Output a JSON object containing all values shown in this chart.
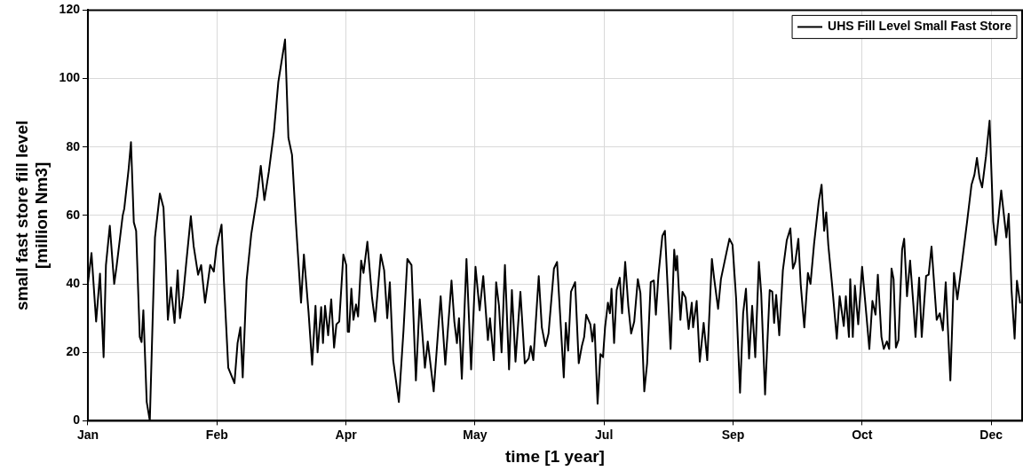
{
  "chart_data": {
    "type": "line",
    "xlabel": "time [1 year]",
    "ylabel": "small fast store fill level\n[million Nm3]",
    "xlim": [
      "--01-01",
      "--12-29"
    ],
    "ylim": [
      0,
      120
    ],
    "xticks": [
      {
        "value": "--01-01",
        "label": "Jan"
      },
      {
        "value": "--02-20",
        "label": "Feb"
      },
      {
        "value": "--04-11",
        "label": "Apr"
      },
      {
        "value": "--05-31",
        "label": "May"
      },
      {
        "value": "--07-20",
        "label": "Jul"
      },
      {
        "value": "--09-08",
        "label": "Sep"
      },
      {
        "value": "--10-28",
        "label": "Oct"
      },
      {
        "value": "--12-17",
        "label": "Dec"
      }
    ],
    "yticks": [
      0,
      20,
      40,
      60,
      80,
      100,
      120
    ],
    "grid": true,
    "legend": "top right",
    "marker": "none",
    "line_style": "solid",
    "series": [
      {
        "name": "UHS Fill Level Small Fast Store",
        "color": "#000000",
        "x": [
          "--01-01",
          "--01-02T09:36",
          "--01-04T04:48",
          "--01-05T16:48",
          "--01-07T02:24",
          "--01-08",
          "--01-09T12:00",
          "--01-11T04:48",
          "--01-12T02:24",
          "--01-14T12:00",
          "--01-15T02:24",
          "--01-16T19:12",
          "--01-17T16:48",
          "--01-18T19:12",
          "--01-19T16:48",
          "--01-21T02:24",
          "--01-21T19:12",
          "--01-22T12:00",
          "--01-23T19:12",
          "--01-25",
          "--01-27",
          "--01-28T21:36",
          "--01-30T07:12",
          "--01-31T02:24",
          "--02-01",
          "--02-02T04:48",
          "--02-03T14:24",
          "--02-04T19:12",
          "--02-05T16:48",
          "--02-06T21:36",
          "--02-08T02:24",
          "--02-09T21:36",
          "--02-11",
          "--02-12T16:48",
          "--02-13T21:36",
          "--02-15T09:36",
          "--02-17T09:36",
          "--02-18T19:12",
          "--02-19T19:12",
          "--02-21T19:12",
          "--02-22T16:48",
          "--02-24T09:36",
          "--02-26T19:12",
          "--02-28",
          "--03-01T02:24",
          "--03-02",
          "--03-03T12:00",
          "--03-05T07:12",
          "--03-07T14:24",
          "--03-09",
          "--03-10T09:36",
          "--03-12T02:24",
          "--03-14T02:24",
          "--03-15T19:12",
          "--03-18T09:36",
          "--03-19T16:48",
          "--03-21T02:24",
          "--03-22T14:24",
          "--03-24T14:24",
          "--03-25T16:48",
          "--03-27T12:00",
          "--03-28T21:36",
          "--03-30T04:48",
          "--03-31",
          "--04-01T09:36",
          "--04-02T02:24",
          "--04-02T21:36",
          "--04-04T02:24",
          "--04-05T07:12",
          "--04-06T09:36",
          "--04-07T07:12",
          "--04-08T09:36",
          "--04-10",
          "--04-11T02:24",
          "--04-11T16:48",
          "--04-12T04:48",
          "--04-13T02:24",
          "--04-13T21:36",
          "--04-14T21:36",
          "--04-15T16:48",
          "--04-16T21:36",
          "--04-17T19:12",
          "--04-19T07:12",
          "--04-21T02:24",
          "--04-22T07:12",
          "--04-24T12:00",
          "--04-25T19:12",
          "--04-27",
          "--04-28",
          "--04-29T07:12",
          "--05-01T12:00",
          "--05-03T07:12",
          "--05-04T19:12",
          "--05-06T09:36",
          "--05-08T02:24",
          "--05-09T14:24",
          "--05-11T14:24",
          "--05-12T16:48",
          "--05-15",
          "--05-17T16:48",
          "--05-19T12:00",
          "--05-21T21:36",
          "--05-23",
          "--05-24",
          "--05-24T19:12",
          "--05-25T21:36",
          "--05-27T16:48",
          "--05-29T12:00",
          "--05-31T04:48",
          "--06-01T19:12",
          "--06-03T04:48",
          "--06-05",
          "--06-05T19:12",
          "--06-07T07:12",
          "--06-08T04:48",
          "--06-09T07:12",
          "--06-10T07:12",
          "--06-11T14:24",
          "--06-13T04:48",
          "--06-14T07:12",
          "--06-15T16:48",
          "--06-17T14:24",
          "--06-19T07:12",
          "--06-20T19:12",
          "--06-21T14:24",
          "--06-22T14:24",
          "--06-24T16:48",
          "--06-25T21:36",
          "--06-27T07:12",
          "--06-28T12:00",
          "--06-30T14:24",
          "--07-01T19:12",
          "--07-04T09:36",
          "--07-05T04:48",
          "--07-06T02:24",
          "--07-07T04:48",
          "--07-08T19:12",
          "--07-10T04:48",
          "--07-11T09:36",
          "--07-12T07:12",
          "--07-13T02:24",
          "--07-14T16:48",
          "--07-15T12:00",
          "--07-16T07:12",
          "--07-17T12:00",
          "--07-18T14:24",
          "--07-19T14:24",
          "--07-20T09:36",
          "--07-21T12:00",
          "--07-22T07:12",
          "--07-22T21:36",
          "--07-23T21:36",
          "--07-24T21:36",
          "--07-26T02:24",
          "--07-27",
          "--07-28T04:48",
          "--07-29T09:36",
          "--07-30T12:00",
          "--07-31T16:48",
          "--08-02T02:24",
          "--08-03T02:24",
          "--08-04T14:24",
          "--08-05T16:48",
          "--08-07T02:24",
          "--08-08T07:12",
          "--08-09T02:24",
          "--08-10T02:24",
          "--08-11T14:24",
          "--08-12T14:24",
          "--08-14T19:12",
          "--08-16T04:48",
          "--08-16T19:12",
          "--08-17T07:12",
          "--08-18T14:24",
          "--08-19T09:36",
          "--08-20T14:24",
          "--08-21T19:12",
          "--08-23",
          "--08-23T12:00",
          "--08-24T21:36",
          "--08-26T02:24",
          "--08-27T14:24",
          "--08-29",
          "--08-30T19:12",
          "--08-31T16:48",
          "--09-02T04:48",
          "--09-03T07:12",
          "--09-05T09:36",
          "--09-06T14:24",
          "--09-07T19:12",
          "--09-09T04:48",
          "--09-10T16:48",
          "--09-11T21:36",
          "--09-13",
          "--09-14T04:48",
          "--09-15T09:36",
          "--09-16T14:24",
          "--09-18",
          "--09-18T21:36",
          "--09-20T09:36",
          "--09-22T04:48",
          "--09-23T04:48",
          "--09-23T21:36",
          "--09-24T16:48",
          "--09-25T21:36",
          "--09-27T07:12",
          "--09-28T19:12",
          "--09-30T04:48",
          "--10-01T04:48",
          "--10-02T02:24",
          "--10-03T07:12",
          "--10-04T04:48",
          "--10-05T14:24",
          "--10-07",
          "--10-08",
          "--10-09T09:36",
          "--10-11T04:48",
          "--10-12T07:12",
          "--10-13T07:12",
          "--10-14T02:24",
          "--10-14T21:36",
          "--10-16T09:36",
          "--10-18T04:48",
          "--10-19T07:12",
          "--10-20T21:36",
          "--10-21T16:48",
          "--10-22T21:36",
          "--10-23T09:36",
          "--10-24T09:36",
          "--10-25T04:48",
          "--10-26T12:00",
          "--10-28",
          "--10-29T14:24",
          "--10-30T19:12",
          "--11-01",
          "--11-02T04:48",
          "--11-03T02:24",
          "--11-04T12:00",
          "--11-05T09:36",
          "--11-06T14:24",
          "--11-07T12:00",
          "--11-08T09:36",
          "--11-09T04:48",
          "--11-10T02:24",
          "--11-11T02:24",
          "--11-12T12:00",
          "--11-13T07:12",
          "--11-14T09:36",
          "--11-15T14:24",
          "--11-16T21:36",
          "--11-17T16:48",
          "--11-19T02:24",
          "--11-20T02:24",
          "--11-21T19:12",
          "--11-22T19:12",
          "--11-23T21:36",
          "--11-25T21:36",
          "--11-27T02:24",
          "--11-28T07:12",
          "--11-29T09:36",
          "--12-01T04:48",
          "--12-02T14:24",
          "--12-03T21:36",
          "--12-04T21:36",
          "--12-07T14:24",
          "--12-09T09:36",
          "--12-10T12:00",
          "--12-11T12:00",
          "--12-12T12:00",
          "--12-13T12:00",
          "--12-15",
          "--12-16T09:36",
          "--12-17T19:12",
          "--12-18T19:12",
          "--12-20T21:36",
          "--12-22T21:36",
          "--12-23T19:12",
          "--12-24T21:36",
          "--12-26T02:24",
          "--12-27",
          "--12-28T04:48"
        ],
        "values": [
          40,
          49,
          29,
          43,
          18.6,
          45.5,
          57,
          40,
          45,
          60,
          62,
          73.6,
          81.4,
          58,
          55.5,
          24.5,
          23,
          32.3,
          5.5,
          0,
          53.6,
          66.4,
          62.3,
          48.6,
          29.5,
          39,
          28.6,
          44,
          30,
          36.4,
          46,
          59.8,
          51,
          42.7,
          45.5,
          34.5,
          45.5,
          43.6,
          50.5,
          57.3,
          41,
          15.5,
          11,
          22.7,
          27.3,
          12.7,
          41,
          54.5,
          65.5,
          74.5,
          64.5,
          72.7,
          84.5,
          99,
          111.4,
          82.7,
          77.7,
          58,
          34.5,
          48.6,
          31.8,
          16.4,
          33.6,
          20,
          33.2,
          22.7,
          33.6,
          25,
          35.5,
          21.4,
          28.2,
          29,
          48.6,
          45.5,
          26,
          26,
          38.6,
          29.5,
          34,
          30.5,
          46.8,
          43.2,
          52.3,
          36,
          29,
          48.6,
          44,
          30,
          40.5,
          17.7,
          5.5,
          26.4,
          47.3,
          45.5,
          11.8,
          35.5,
          15.5,
          23.2,
          8.6,
          36.4,
          16.4,
          41,
          29,
          22.7,
          30,
          12.3,
          47.3,
          15,
          45,
          32.3,
          42.3,
          23.6,
          30,
          17.7,
          40.5,
          33.6,
          20,
          45.5,
          15,
          38.2,
          17.3,
          37.7,
          16.8,
          18.2,
          21.8,
          17.7,
          42.3,
          27.3,
          21.8,
          25.5,
          44.5,
          46.4,
          12.7,
          28.6,
          20.5,
          37.7,
          40.5,
          16.8,
          21.8,
          24.5,
          31,
          28.2,
          23.2,
          28.2,
          5,
          19.5,
          18.6,
          27.3,
          34.5,
          31.4,
          38.6,
          22.7,
          38.2,
          41.8,
          31.4,
          46.4,
          33.6,
          25.5,
          29,
          41.4,
          37.3,
          8.6,
          16.8,
          40.5,
          41,
          31,
          42.7,
          54,
          55.5,
          21,
          50,
          44,
          48.2,
          29.5,
          37.7,
          36,
          26.8,
          34.5,
          27.3,
          35,
          17.3,
          28.6,
          17.7,
          47.3,
          41.4,
          32.7,
          41.4,
          49,
          53.2,
          51.4,
          35.5,
          8.2,
          31.4,
          38.6,
          18.2,
          33.6,
          18.6,
          46.4,
          37.3,
          7.7,
          38.2,
          37.7,
          28.6,
          36.8,
          25,
          44,
          52.7,
          56.2,
          44.5,
          46.4,
          53.2,
          40,
          27.3,
          43.2,
          40,
          51.8,
          64,
          69,
          55.5,
          60.9,
          51.4,
          39.5,
          24,
          36.4,
          27.7,
          36.4,
          24.5,
          41.4,
          24.5,
          39.5,
          28.2,
          45,
          31.4,
          21,
          35,
          31,
          42.7,
          24.5,
          21,
          23.2,
          21,
          44.5,
          41.4,
          21.4,
          23.6,
          50,
          53.2,
          36.4,
          46.8,
          33.6,
          24.5,
          41.8,
          24.5,
          42.3,
          42.7,
          50.9,
          29.5,
          31.4,
          26.4,
          40.5,
          11.8,
          43.2,
          35.5,
          41.4,
          57.7,
          69,
          71.8,
          76.8,
          70.9,
          68.2,
          77.3,
          87.7,
          58.2,
          51.4,
          67.3,
          53.6,
          60.5,
          38.2,
          24,
          40.9,
          34.5
        ]
      }
    ]
  }
}
